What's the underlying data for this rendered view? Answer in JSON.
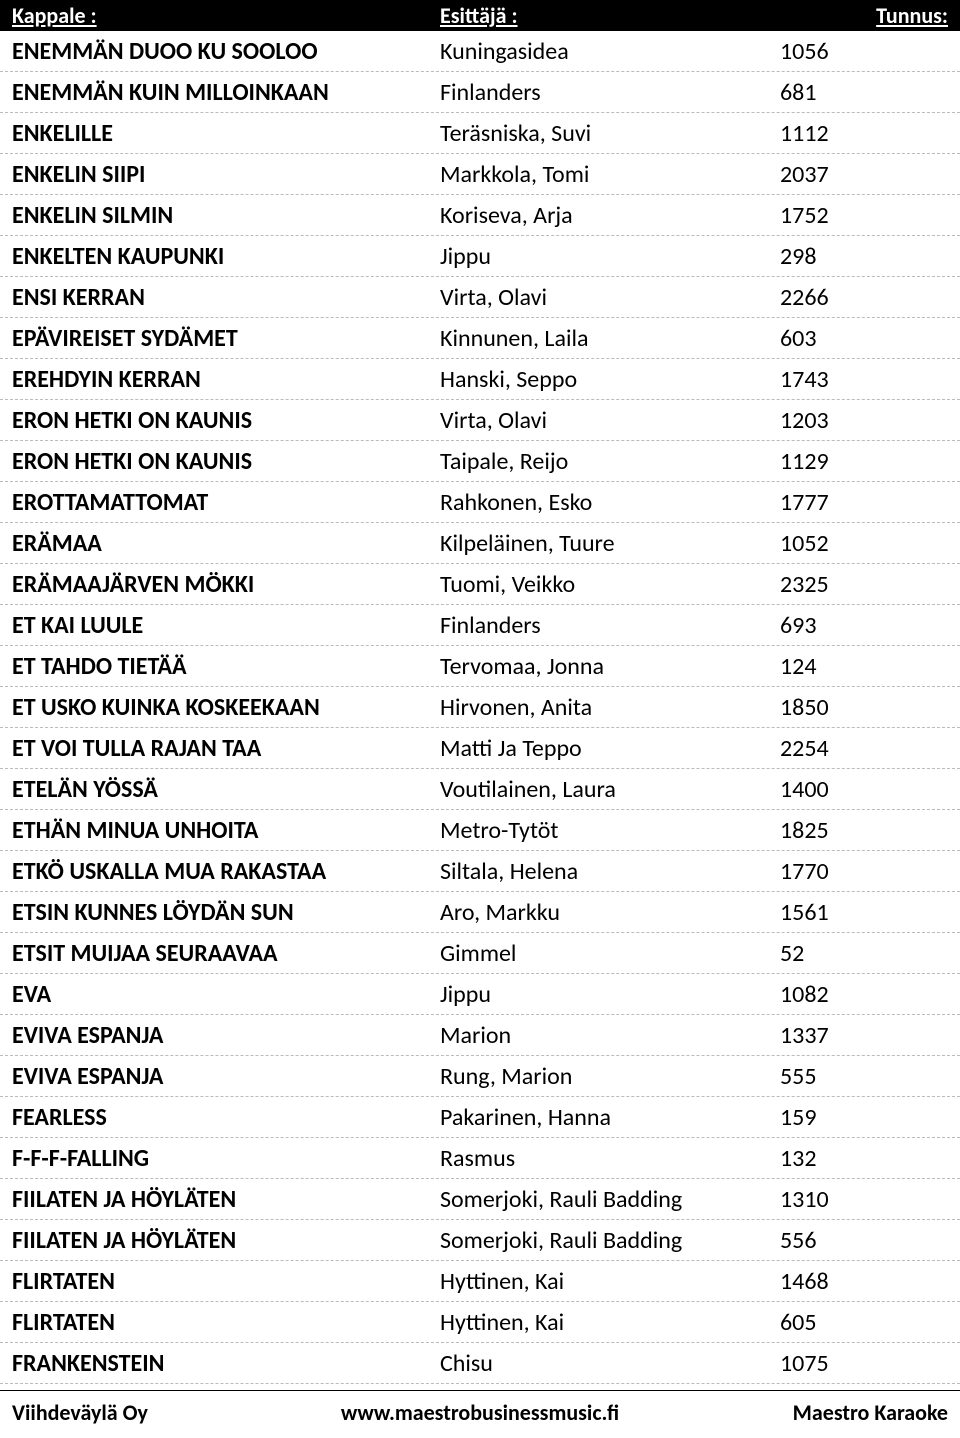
{
  "header": {
    "song": "Kappale :",
    "artist": "Esittäjä :",
    "code": "Tunnus:"
  },
  "rows": [
    {
      "song": "ENEMMÄN DUOO KU SOOLOO",
      "artist": "Kuningasidea",
      "code": "1056"
    },
    {
      "song": "ENEMMÄN KUIN MILLOINKAAN",
      "artist": "Finlanders",
      "code": "681"
    },
    {
      "song": "ENKELILLE",
      "artist": "Teräsniska, Suvi",
      "code": "1112"
    },
    {
      "song": "ENKELIN SIIPI",
      "artist": "Markkola, Tomi",
      "code": "2037"
    },
    {
      "song": "ENKELIN SILMIN",
      "artist": "Koriseva, Arja",
      "code": "1752"
    },
    {
      "song": "ENKELTEN KAUPUNKI",
      "artist": "Jippu",
      "code": "298"
    },
    {
      "song": "ENSI KERRAN",
      "artist": "Virta, Olavi",
      "code": "2266"
    },
    {
      "song": "EPÄVIREISET SYDÄMET",
      "artist": "Kinnunen, Laila",
      "code": "603"
    },
    {
      "song": "EREHDYIN KERRAN",
      "artist": "Hanski, Seppo",
      "code": "1743"
    },
    {
      "song": "ERON HETKI ON KAUNIS",
      "artist": "Virta, Olavi",
      "code": "1203"
    },
    {
      "song": "ERON HETKI ON KAUNIS",
      "artist": "Taipale, Reijo",
      "code": "1129"
    },
    {
      "song": "EROTTAMATTOMAT",
      "artist": "Rahkonen, Esko",
      "code": "1777"
    },
    {
      "song": "ERÄMAA",
      "artist": "Kilpeläinen, Tuure",
      "code": "1052"
    },
    {
      "song": "ERÄMAAJÄRVEN MÖKKI",
      "artist": "Tuomi, Veikko",
      "code": "2325"
    },
    {
      "song": "ET KAI LUULE",
      "artist": "Finlanders",
      "code": "693"
    },
    {
      "song": "ET TAHDO TIETÄÄ",
      "artist": "Tervomaa, Jonna",
      "code": "124"
    },
    {
      "song": "ET USKO KUINKA KOSKEEKAAN",
      "artist": "Hirvonen, Anita",
      "code": "1850"
    },
    {
      "song": "ET VOI TULLA RAJAN TAA",
      "artist": "Matti Ja Teppo",
      "code": "2254"
    },
    {
      "song": "ETELÄN YÖSSÄ",
      "artist": "Voutilainen, Laura",
      "code": "1400"
    },
    {
      "song": "ETHÄN MINUA UNHOITA",
      "artist": "Metro-Tytöt",
      "code": "1825"
    },
    {
      "song": "ETKÖ USKALLA MUA RAKASTAA",
      "artist": "Siltala, Helena",
      "code": "1770"
    },
    {
      "song": "ETSIN KUNNES LÖYDÄN SUN",
      "artist": "Aro, Markku",
      "code": "1561"
    },
    {
      "song": "ETSIT MUIJAA SEURAAVAA",
      "artist": "Gimmel",
      "code": "52"
    },
    {
      "song": "EVA",
      "artist": "Jippu",
      "code": "1082"
    },
    {
      "song": "EVIVA ESPANJA",
      "artist": "Marion",
      "code": "1337"
    },
    {
      "song": "EVIVA ESPANJA",
      "artist": "Rung, Marion",
      "code": "555"
    },
    {
      "song": "FEARLESS",
      "artist": "Pakarinen, Hanna",
      "code": "159"
    },
    {
      "song": "F-F-F-FALLING",
      "artist": "Rasmus",
      "code": "132"
    },
    {
      "song": "FIILATEN JA HÖYLÄTEN",
      "artist": "Somerjoki, Rauli Badding",
      "code": "1310"
    },
    {
      "song": "FIILATEN JA HÖYLÄTEN",
      "artist": "Somerjoki, Rauli Badding",
      "code": "556"
    },
    {
      "song": "FLIRTATEN",
      "artist": "Hyttinen, Kai",
      "code": "1468"
    },
    {
      "song": "FLIRTATEN",
      "artist": "Hyttinen, Kai",
      "code": "605"
    },
    {
      "song": "FRANKENSTEIN",
      "artist": "Chisu",
      "code": "1075"
    }
  ],
  "footer": {
    "left": "Viihdeväylä Oy",
    "center": "www.maestrobusinessmusic.fi",
    "right": "Maestro Karaoke"
  }
}
